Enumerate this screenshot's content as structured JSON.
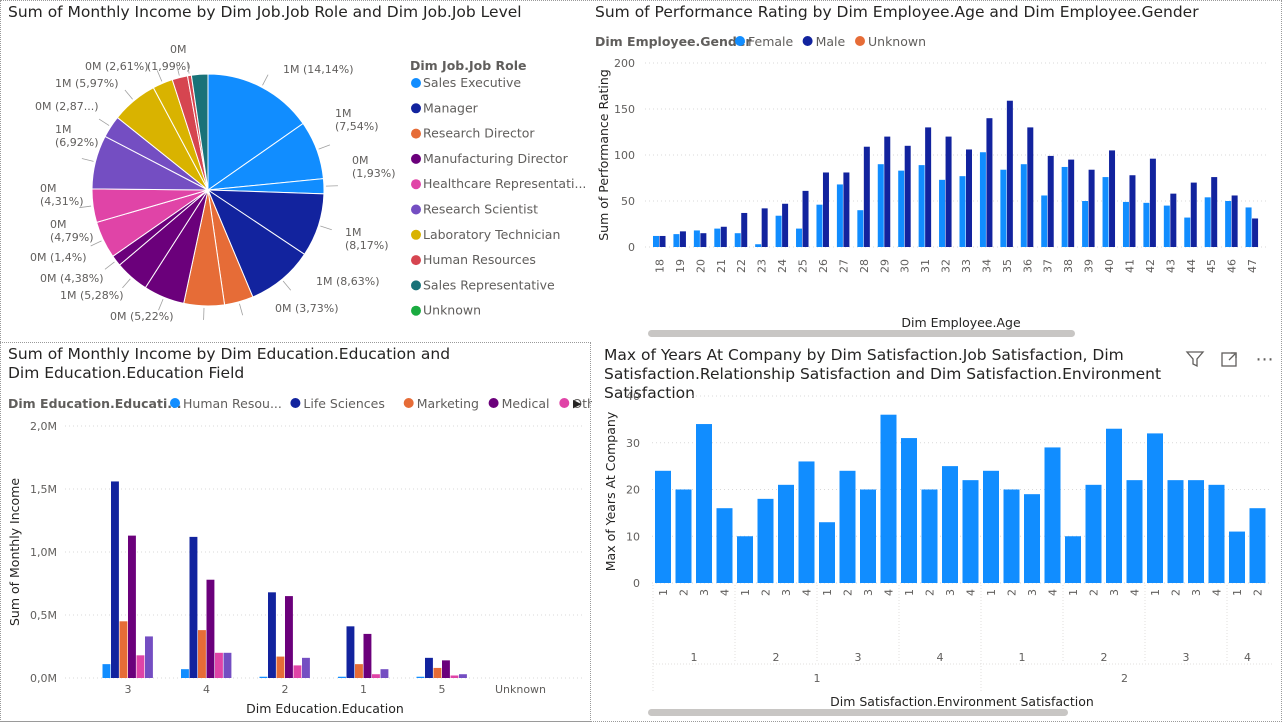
{
  "colors": {
    "sales_exec": "#118DFF",
    "manager": "#12239E",
    "research_director": "#E66C37",
    "manufacturing_director": "#6B007B",
    "healthcare_rep": "#E044A7",
    "research_scientist": "#744EC2",
    "lab_tech": "#D9B300",
    "human_resources": "#D64550",
    "sales_rep": "#197278",
    "unknown": "#1AAB40"
  },
  "pie_panel": {
    "title": "Sum of Monthly Income by Dim Job.Job Role and Dim Job.Job Level",
    "legend_title": "Dim Job.Job Role"
  },
  "perf_panel": {
    "title": "Sum of Performance Rating by Dim Employee.Age and Dim Employee.Gender",
    "legend_title": "Dim Employee.Gender"
  },
  "edu_panel": {
    "title": "Sum of Monthly Income by Dim Education.Education and Dim Education.Education Field",
    "legend_title": "Dim Education.Educati...",
    "legend_more": "▶"
  },
  "years_panel": {
    "title": "Max of Years At Company by Dim Satisfaction.Job Satisfaction, Dim Satisfaction.Relationship Satisfaction and Dim Satisfaction.Environment Satisfaction",
    "filter_icon": "filter-icon",
    "focus_icon": "focus-mode-icon",
    "more_icon": "more-options-icon"
  },
  "chart_data": [
    {
      "type": "pie",
      "title": "Sum of Monthly Income by Dim Job.Job Role and Dim Job.Job Level",
      "legend_title": "Dim Job.Job Role",
      "legend": [
        "Sales Executive",
        "Manager",
        "Research Director",
        "Manufacturing Director",
        "Healthcare Representati...",
        "Research Scientist",
        "Laboratory Technician",
        "Human Resources",
        "Sales Representative",
        "Unknown"
      ],
      "legend_keys": [
        "sales_exec",
        "manager",
        "research_director",
        "manufacturing_director",
        "healthcare_rep",
        "research_scientist",
        "lab_tech",
        "human_resources",
        "sales_rep",
        "unknown"
      ],
      "slices": [
        {
          "role": "sales_exec",
          "pct": 14.14,
          "label": "1M (14,14%)"
        },
        {
          "role": "sales_exec",
          "pct": 7.54,
          "label": "1M\n(7,54%)"
        },
        {
          "role": "sales_exec",
          "pct": 1.93,
          "label": "0M\n(1,93%)"
        },
        {
          "role": "manager",
          "pct": 8.17,
          "label": "1M\n(8,17%)"
        },
        {
          "role": "manager",
          "pct": 8.63,
          "label": "1M (8,63%)"
        },
        {
          "role": "research_director",
          "pct": 3.73,
          "label": "0M (3,73%)"
        },
        {
          "role": "research_director",
          "pct": 5.22,
          "label": "0M (5,22%)"
        },
        {
          "role": "manufacturing_director",
          "pct": 5.28,
          "label": "1M (5,28%)"
        },
        {
          "role": "manufacturing_director",
          "pct": 4.38,
          "label": "0M (4,38%)"
        },
        {
          "role": "manufacturing_director",
          "pct": 1.4,
          "label": "0M (1,4%)"
        },
        {
          "role": "healthcare_rep",
          "pct": 4.79,
          "label": "0M\n(4,79%)"
        },
        {
          "role": "healthcare_rep",
          "pct": 4.31,
          "label": "0M\n(4,31%)"
        },
        {
          "role": "research_scientist",
          "pct": 6.92,
          "label": "1M\n(6,92%)"
        },
        {
          "role": "research_scientist",
          "pct": 2.87,
          "label": "0M (2,87...)"
        },
        {
          "role": "lab_tech",
          "pct": 5.97,
          "label": "1M (5,97%)"
        },
        {
          "role": "lab_tech",
          "pct": 2.61,
          "label": "0M (2,61%)"
        },
        {
          "role": "human_resources",
          "pct": 1.99,
          "label": "(1,99%)"
        },
        {
          "role": "human_resources",
          "pct": 0.5,
          "label": "0M"
        },
        {
          "role": "sales_rep",
          "pct": 2.12,
          "label": ""
        }
      ]
    },
    {
      "type": "bar",
      "title": "Sum of Performance Rating by Dim Employee.Age and Dim Employee.Gender",
      "xlabel": "Dim Employee.Age",
      "ylabel": "Sum of Performance Rating",
      "ylim": [
        0,
        200
      ],
      "yticks": [
        0,
        50,
        100,
        150,
        200
      ],
      "categories": [
        "18",
        "19",
        "20",
        "21",
        "22",
        "23",
        "24",
        "25",
        "26",
        "27",
        "28",
        "29",
        "30",
        "31",
        "32",
        "33",
        "34",
        "35",
        "36",
        "37",
        "38",
        "39",
        "40",
        "41",
        "42",
        "43",
        "44",
        "45",
        "46",
        "47"
      ],
      "series": [
        {
          "name": "Female",
          "color": "#118DFF",
          "values": [
            12,
            14,
            18,
            20,
            15,
            3,
            34,
            20,
            46,
            68,
            40,
            90,
            83,
            89,
            73,
            77,
            103,
            84,
            90,
            56,
            87,
            50,
            76,
            49,
            48,
            45,
            32,
            54,
            50,
            43
          ]
        },
        {
          "name": "Male",
          "color": "#12239E",
          "values": [
            12,
            17,
            15,
            22,
            37,
            42,
            47,
            61,
            81,
            81,
            109,
            120,
            110,
            130,
            120,
            106,
            140,
            159,
            130,
            99,
            95,
            84,
            105,
            78,
            96,
            58,
            70,
            76,
            56,
            31
          ]
        },
        {
          "name": "Unknown",
          "color": "#E66C37",
          "values": [
            0,
            0,
            0,
            0,
            0,
            0,
            0,
            0,
            0,
            0,
            0,
            0,
            0,
            0,
            0,
            0,
            0,
            0,
            0,
            0,
            0,
            0,
            0,
            0,
            0,
            0,
            0,
            0,
            0,
            0
          ]
        }
      ],
      "grid": true,
      "legend_position": "top-left"
    },
    {
      "type": "bar",
      "title": "Sum of Monthly Income by Dim Education.Education and Dim Education.Education Field",
      "xlabel": "Dim Education.Education",
      "ylabel": "Sum of Monthly Income",
      "ylim": [
        0,
        2.0
      ],
      "yticks": [
        "0,0M",
        "0,5M",
        "1,0M",
        "1,5M",
        "2,0M"
      ],
      "categories": [
        "3",
        "4",
        "2",
        "1",
        "5",
        "Unknown"
      ],
      "series": [
        {
          "name": "Human Resou...",
          "color": "#118DFF",
          "values": [
            0.11,
            0.07,
            0.01,
            0.01,
            0.01,
            0
          ]
        },
        {
          "name": "Life Sciences",
          "color": "#12239E",
          "values": [
            1.56,
            1.12,
            0.68,
            0.41,
            0.16,
            0
          ]
        },
        {
          "name": "Marketing",
          "color": "#E66C37",
          "values": [
            0.45,
            0.38,
            0.17,
            0.11,
            0.08,
            0
          ]
        },
        {
          "name": "Medical",
          "color": "#6B007B",
          "values": [
            1.13,
            0.78,
            0.65,
            0.35,
            0.14,
            0
          ]
        },
        {
          "name": "Other",
          "color": "#E044A7",
          "values": [
            0.18,
            0.2,
            0.1,
            0.03,
            0.02,
            0
          ]
        },
        {
          "name": "",
          "color": "#744EC2",
          "values": [
            0.33,
            0.2,
            0.16,
            0.07,
            0.03,
            0
          ]
        }
      ],
      "grid": true,
      "legend_position": "top-left"
    },
    {
      "type": "bar",
      "title": "Max of Years At Company by Dim Satisfaction.Job Satisfaction, Dim Satisfaction.Relationship Satisfaction and Dim Satisfaction.Environment Satisfaction",
      "xlabel": "Dim Satisfaction.Environment Satisfaction",
      "ylabel": "Max of Years At Company",
      "ylim": [
        0,
        40
      ],
      "yticks": [
        0,
        10,
        20,
        30,
        40
      ],
      "level1_labels": [
        "1",
        "2",
        "3",
        "4",
        "1",
        "2",
        "3",
        "4",
        "1",
        "2",
        "3",
        "4",
        "1",
        "2",
        "3",
        "4",
        "1",
        "2",
        "3",
        "4",
        "1",
        "2",
        "3",
        "4",
        "1",
        "2",
        "3",
        "4",
        "1",
        "2"
      ],
      "level2_groups": [
        {
          "label": "1",
          "count": 4
        },
        {
          "label": "2",
          "count": 4
        },
        {
          "label": "3",
          "count": 4
        },
        {
          "label": "4",
          "count": 4
        },
        {
          "label": "1",
          "count": 4
        },
        {
          "label": "2",
          "count": 4
        },
        {
          "label": "3",
          "count": 4
        },
        {
          "label": "4",
          "count": 2
        }
      ],
      "level3_groups": [
        {
          "label": "1",
          "count": 16
        },
        {
          "label": "2",
          "count": 14
        }
      ],
      "values": [
        24,
        20,
        34,
        16,
        10,
        18,
        21,
        26,
        13,
        24,
        20,
        36,
        31,
        20,
        25,
        22,
        24,
        20,
        19,
        29,
        10,
        21,
        33,
        22,
        32,
        22,
        22,
        21,
        11,
        16
      ],
      "color": "#118DFF",
      "grid": true
    }
  ]
}
